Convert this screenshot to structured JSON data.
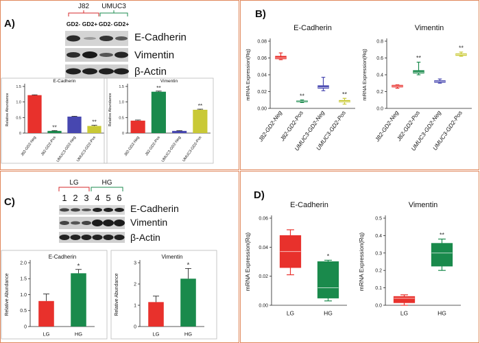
{
  "panels": {
    "A": {
      "label": "A)",
      "groups": [
        "J82",
        "UMUC3"
      ],
      "lanes": [
        "GD2-",
        "GD2+",
        "GD2-",
        "GD2+"
      ],
      "proteins": [
        "E-Cadherin",
        "Vimentin",
        "β-Actin"
      ]
    },
    "B": {
      "label": "B)"
    },
    "C": {
      "label": "C)",
      "groups": [
        "LG",
        "HG"
      ],
      "lanes": [
        "1",
        "2",
        "3",
        "4",
        "5",
        "6"
      ],
      "proteins": [
        "E-Cadherin",
        "Vimentin",
        "β-Actin"
      ]
    },
    "D": {
      "label": "D)"
    }
  },
  "colors": {
    "red": "#e8312c",
    "green": "#1a8a4c",
    "blue": "#4747b0",
    "yellow": "#c9c936",
    "frame": "#e0865a"
  },
  "chart_data": [
    {
      "id": "A-ecad",
      "panel": "A",
      "type": "bar",
      "title": "E-Cadherin",
      "ylabel": "Relative Abundance",
      "categories": [
        "J82-GD2-Neg",
        "J82-GD2-Pos",
        "UMUC3-GD2-Neg",
        "UMUC3-GD2-Pos"
      ],
      "values": [
        1.22,
        0.07,
        0.53,
        0.23
      ],
      "errors": [
        0.01,
        0.01,
        0.01,
        0.02
      ],
      "colors": [
        "#e8312c",
        "#1a8a4c",
        "#4747b0",
        "#c9c936"
      ],
      "significance": [
        "",
        "**",
        "",
        "**"
      ],
      "ylim": [
        0,
        1.5
      ],
      "yticks": [
        0,
        0.5,
        1.0,
        1.5
      ],
      "yticklabels": [
        "0",
        "0.5",
        "1.0",
        "1.5"
      ]
    },
    {
      "id": "A-vim",
      "panel": "A",
      "type": "bar",
      "title": "Vimentin",
      "ylabel": "Relative Abundance",
      "categories": [
        "J82-GD2-Neg",
        "J82-GD2-Pos",
        "UMUC3-GD2-Neg",
        "UMUC3-GD2-Pos"
      ],
      "values": [
        0.4,
        1.33,
        0.07,
        0.75
      ],
      "errors": [
        0.02,
        0.02,
        0.01,
        0.02
      ],
      "colors": [
        "#e8312c",
        "#1a8a4c",
        "#4747b0",
        "#c9c936"
      ],
      "significance": [
        "",
        "**",
        "",
        "**"
      ],
      "ylim": [
        0,
        1.5
      ],
      "yticks": [
        0,
        0.5,
        1.0,
        1.5
      ],
      "yticklabels": [
        "0",
        "0.5",
        "1.0",
        "1.5"
      ]
    },
    {
      "id": "B-ecad",
      "panel": "B",
      "type": "box",
      "title": "E-Cadherin",
      "ylabel": "mRNA Expression(Rq)",
      "categories": [
        "J82-GD2-Neg",
        "J82-GD2-Pos",
        "UMUC3-GD2-Neg",
        "UMUC3-GD2-Pos"
      ],
      "boxes": [
        {
          "min": 0.058,
          "q1": 0.059,
          "median": 0.06,
          "q3": 0.062,
          "max": 0.066
        },
        {
          "min": 0.007,
          "q1": 0.008,
          "median": 0.0085,
          "q3": 0.009,
          "max": 0.01
        },
        {
          "min": 0.021,
          "q1": 0.024,
          "median": 0.025,
          "q3": 0.027,
          "max": 0.037
        },
        {
          "min": 0.005,
          "q1": 0.0075,
          "median": 0.008,
          "q3": 0.0095,
          "max": 0.012
        }
      ],
      "colors": [
        "#e8312c",
        "#1a8a4c",
        "#4747b0",
        "#c9c936"
      ],
      "significance": [
        "",
        "**",
        "",
        "**"
      ],
      "ylim": [
        0,
        0.08
      ],
      "yticks": [
        0,
        0.02,
        0.04,
        0.06,
        0.08
      ],
      "yticklabels": [
        "0.00",
        "0.02",
        "0.04",
        "0.06",
        "0.08"
      ]
    },
    {
      "id": "B-vim",
      "panel": "B",
      "type": "box",
      "title": "Vimentin",
      "ylabel": "mRNA Expression(Rq)",
      "categories": [
        "J82-GD2-Neg",
        "J82-GD2-Pos",
        "UMUC3-GD2-Neg",
        "UMUC3-GD2-Pos"
      ],
      "boxes": [
        {
          "min": 0.24,
          "q1": 0.255,
          "median": 0.265,
          "q3": 0.275,
          "max": 0.28
        },
        {
          "min": 0.4,
          "q1": 0.42,
          "median": 0.43,
          "q3": 0.45,
          "max": 0.55
        },
        {
          "min": 0.3,
          "q1": 0.31,
          "median": 0.32,
          "q3": 0.33,
          "max": 0.35
        },
        {
          "min": 0.62,
          "q1": 0.63,
          "median": 0.64,
          "q3": 0.65,
          "max": 0.67
        }
      ],
      "colors": [
        "#e8312c",
        "#1a8a4c",
        "#4747b0",
        "#c9c936"
      ],
      "significance": [
        "",
        "**",
        "",
        "**"
      ],
      "ylim": [
        0,
        0.8
      ],
      "yticks": [
        0,
        0.2,
        0.4,
        0.6,
        0.8
      ],
      "yticklabels": [
        "0.0",
        "0.2",
        "0.4",
        "0.6",
        "0.8"
      ]
    },
    {
      "id": "C-ecad",
      "panel": "C",
      "type": "bar",
      "title": "E-Cadherin",
      "ylabel": "Relative Abundance",
      "categories": [
        "LG",
        "HG"
      ],
      "values": [
        0.8,
        1.67
      ],
      "errors": [
        0.22,
        0.12
      ],
      "colors": [
        "#e8312c",
        "#1a8a4c"
      ],
      "significance": [
        "",
        "*"
      ],
      "ylim": [
        0,
        2.0
      ],
      "yticks": [
        0,
        0.5,
        1.0,
        1.5,
        2.0
      ],
      "yticklabels": [
        "0",
        "0.5",
        "1.0",
        "1.5",
        "2.0"
      ]
    },
    {
      "id": "C-vim",
      "panel": "C",
      "type": "bar",
      "title": "Vimentin",
      "ylabel": "Relative Abundance",
      "categories": [
        "LG",
        "HG"
      ],
      "values": [
        1.15,
        2.25
      ],
      "errors": [
        0.28,
        0.48
      ],
      "colors": [
        "#e8312c",
        "#1a8a4c"
      ],
      "significance": [
        "",
        "*"
      ],
      "ylim": [
        0,
        3
      ],
      "yticks": [
        0,
        1,
        2,
        3
      ],
      "yticklabels": [
        "0",
        "1",
        "2",
        "3"
      ]
    },
    {
      "id": "D-ecad",
      "panel": "D",
      "type": "box",
      "title": "E-Cadherin",
      "ylabel": "mRNA Expression(Rq)",
      "categories": [
        "LG",
        "HG"
      ],
      "boxes": [
        {
          "min": 0.021,
          "q1": 0.026,
          "median": 0.037,
          "q3": 0.048,
          "max": 0.052
        },
        {
          "min": 0.003,
          "q1": 0.005,
          "median": 0.012,
          "q3": 0.03,
          "max": 0.031
        }
      ],
      "colors": [
        "#e8312c",
        "#1a8a4c"
      ],
      "significance": [
        "",
        "*"
      ],
      "ylim": [
        0,
        0.06
      ],
      "yticks": [
        0,
        0.02,
        0.04,
        0.06
      ],
      "yticklabels": [
        "0.00",
        "0.02",
        "0.04",
        "0.06"
      ]
    },
    {
      "id": "D-vim",
      "panel": "D",
      "type": "box",
      "title": "Vimentin",
      "ylabel": "mRNA Expression(Rq)",
      "categories": [
        "LG",
        "HG"
      ],
      "boxes": [
        {
          "min": 0.0,
          "q1": 0.015,
          "median": 0.04,
          "q3": 0.05,
          "max": 0.06
        },
        {
          "min": 0.2,
          "q1": 0.225,
          "median": 0.3,
          "q3": 0.355,
          "max": 0.38
        }
      ],
      "colors": [
        "#e8312c",
        "#1a8a4c"
      ],
      "significance": [
        "",
        "**"
      ],
      "ylim": [
        0,
        0.5
      ],
      "yticks": [
        0,
        0.1,
        0.2,
        0.3,
        0.4,
        0.5
      ],
      "yticklabels": [
        "0.0",
        "0.1",
        "0.2",
        "0.3",
        "0.4",
        "0.5"
      ]
    }
  ]
}
